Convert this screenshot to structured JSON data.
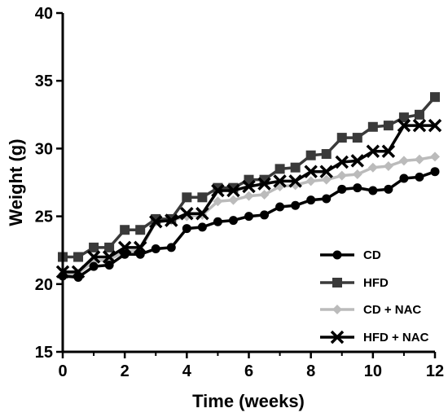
{
  "chart_data": {
    "type": "line",
    "title": "",
    "xlabel": "Time (weeks)",
    "ylabel": "Weight (g)",
    "xlim": [
      0,
      12
    ],
    "ylim": [
      15,
      40
    ],
    "x_ticks": [
      0,
      2,
      4,
      6,
      8,
      10,
      12
    ],
    "y_ticks": [
      15,
      20,
      25,
      30,
      35,
      40
    ],
    "grid": false,
    "legend_position": "bottom-right",
    "x": [
      0,
      0.5,
      1,
      1.5,
      2,
      2.5,
      3,
      3.5,
      4,
      4.5,
      5,
      5.5,
      6,
      6.5,
      7,
      7.5,
      8,
      8.5,
      9,
      9.5,
      10,
      10.5,
      11,
      11.5,
      12
    ],
    "series": [
      {
        "name": "CD",
        "marker": "circle",
        "color": "#000000",
        "values": [
          20.6,
          20.5,
          21.3,
          21.4,
          22.2,
          22.2,
          22.6,
          22.7,
          24.1,
          24.2,
          24.6,
          24.7,
          25.0,
          25.1,
          25.7,
          25.8,
          26.2,
          26.3,
          27.0,
          27.1,
          26.9,
          27.0,
          27.8,
          27.9,
          28.3
        ]
      },
      {
        "name": "HFD",
        "marker": "square",
        "color": "#3a3a3a",
        "values": [
          22.0,
          22.0,
          22.7,
          22.7,
          24.0,
          24.0,
          24.8,
          24.8,
          26.4,
          26.4,
          27.1,
          27.1,
          27.7,
          27.7,
          28.5,
          28.6,
          29.5,
          29.6,
          30.8,
          30.8,
          31.6,
          31.7,
          32.3,
          32.5,
          33.8
        ]
      },
      {
        "name": "CD + NAC",
        "marker": "diamond",
        "color": "#bbbbbb",
        "values": [
          20.7,
          20.8,
          21.7,
          21.8,
          22.4,
          22.5,
          24.6,
          24.7,
          25.0,
          25.1,
          26.1,
          26.2,
          26.5,
          26.6,
          27.2,
          27.3,
          27.6,
          27.7,
          28.0,
          28.1,
          28.6,
          28.7,
          29.1,
          29.2,
          29.4
        ]
      },
      {
        "name": "HFD + NAC",
        "marker": "x",
        "color": "#000000",
        "values": [
          20.9,
          20.9,
          22.0,
          22.0,
          22.7,
          22.7,
          24.6,
          24.7,
          25.2,
          25.2,
          26.9,
          26.9,
          27.2,
          27.4,
          27.6,
          27.6,
          28.3,
          28.3,
          29.0,
          29.1,
          29.8,
          29.8,
          31.7,
          31.7,
          31.7
        ]
      }
    ]
  }
}
